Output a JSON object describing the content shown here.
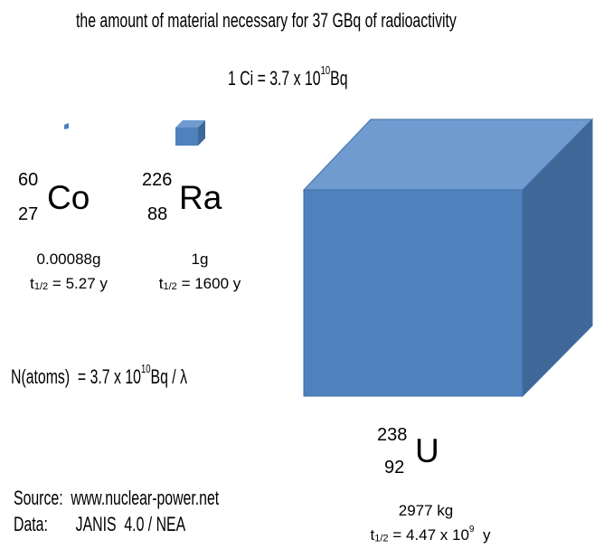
{
  "title": "the amount of material necessary for 37 GBq of radioactivity",
  "conversion": {
    "text": "1 Ci = 3.7 x 10",
    "exponent": "10",
    "unit": "Bq"
  },
  "isotopes": [
    {
      "mass_number": "60",
      "atomic_number": "27",
      "symbol": "Co",
      "amount": "0.00088g",
      "half_life_symbol": "t",
      "half_life_subscript": "1/2",
      "half_life": "= 5.27 y"
    },
    {
      "mass_number": "226",
      "atomic_number": "88",
      "symbol": "Ra",
      "amount": "1g",
      "half_life_symbol": "t",
      "half_life_subscript": "1/2",
      "half_life": "= 1600 y"
    },
    {
      "mass_number": "238",
      "atomic_number": "92",
      "symbol": "U",
      "amount": "2977 kg",
      "half_life_symbol": "t",
      "half_life_subscript": "1/2",
      "half_life": "= 4.47 x 10",
      "half_life_exponent": "9",
      "half_life_unit": "y"
    }
  ],
  "formula": {
    "text": "N(atoms)  = 3.7 x 10",
    "exponent": "10",
    "unit": "Bq / λ"
  },
  "source": {
    "label": "Source:",
    "value": "www.nuclear-power.net"
  },
  "data": {
    "label": "Data:",
    "value": "JANIS  4.0 / NEA"
  }
}
